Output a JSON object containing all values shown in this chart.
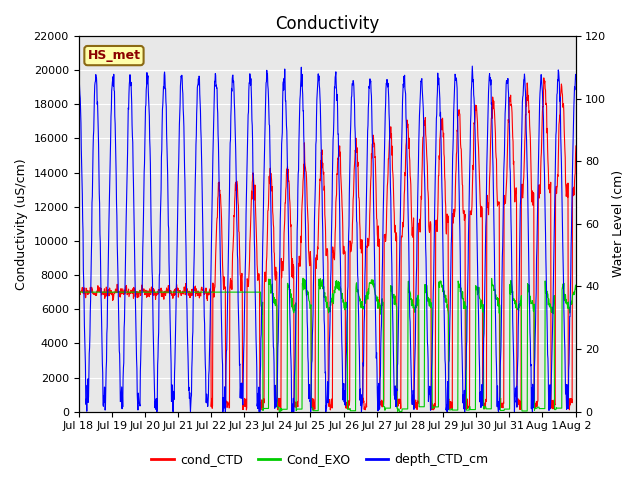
{
  "title": "Conductivity",
  "ylabel_left": "Conductivity (uS/cm)",
  "ylabel_right": "Water Level (cm)",
  "ylim_left": [
    0,
    22000
  ],
  "ylim_right": [
    0,
    120
  ],
  "yticks_left": [
    0,
    2000,
    4000,
    6000,
    8000,
    10000,
    12000,
    14000,
    16000,
    18000,
    20000,
    22000
  ],
  "yticks_right": [
    0,
    20,
    40,
    60,
    80,
    100,
    120
  ],
  "bg_color": "#e8e8e8",
  "fig_bg": "#ffffff",
  "station_label": "HS_met",
  "legend_labels": [
    "cond_CTD",
    "Cond_EXO",
    "depth_CTD_cm"
  ],
  "line_colors": [
    "#ff0000",
    "#00cc00",
    "#0000ff"
  ],
  "xtick_labels": [
    "Jul 18",
    "Jul 19",
    "Jul 20",
    "Jul 21",
    "Jul 22",
    "Jul 23",
    "Jul 24",
    "Jul 25",
    "Jul 26",
    "Jul 27",
    "Jul 28",
    "Jul 29",
    "Jul 30",
    "Jul 31",
    "Aug 1",
    "Aug 2"
  ],
  "n_days": 16,
  "title_fontsize": 12,
  "label_fontsize": 9,
  "tick_fontsize": 8,
  "legend_fontsize": 9,
  "station_fontsize": 9,
  "linewidth": 0.8
}
